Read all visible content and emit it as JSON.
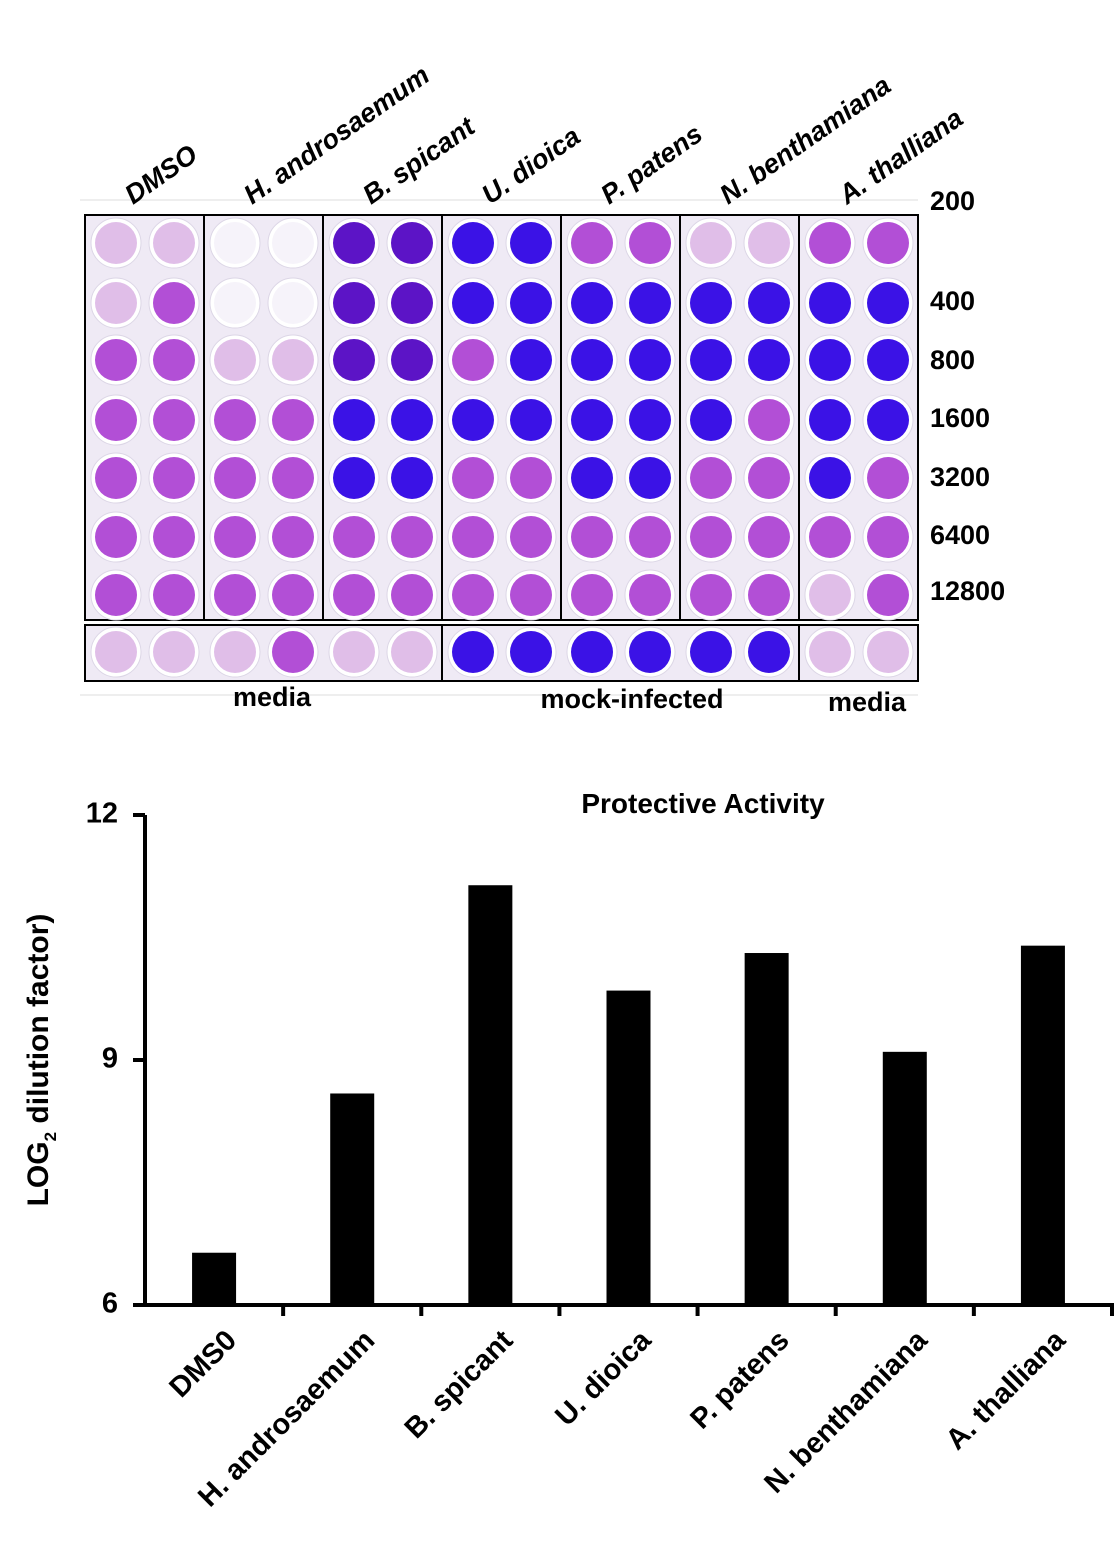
{
  "plate": {
    "column_labels": [
      "DMSO",
      "H. androsaemum",
      "B. spicant",
      "U. dioica",
      "P. patens",
      "N. benthamiana",
      "A. thalliana"
    ],
    "row_labels": [
      "200",
      "400",
      "800",
      "1600",
      "3200",
      "6400",
      "12800"
    ],
    "bottom_labels": [
      "media",
      "mock-infected",
      "media"
    ]
  },
  "chart_data": {
    "type": "bar",
    "title": "Protective Activity",
    "y_label": {
      "text": "LOG",
      "subscript": "2",
      "rest": " dilution factor)"
    },
    "categories": [
      "DMS0",
      "H. androsaemum",
      "B. spicant",
      "U. dioica",
      "P. patens",
      "N. benthamiana",
      "A. thalliana"
    ],
    "values": [
      6.64,
      8.59,
      11.14,
      9.85,
      10.31,
      9.1,
      10.4
    ],
    "color": "#000000",
    "ylim": [
      6,
      12
    ],
    "yticks": [
      6,
      9,
      12
    ],
    "grid": false
  }
}
